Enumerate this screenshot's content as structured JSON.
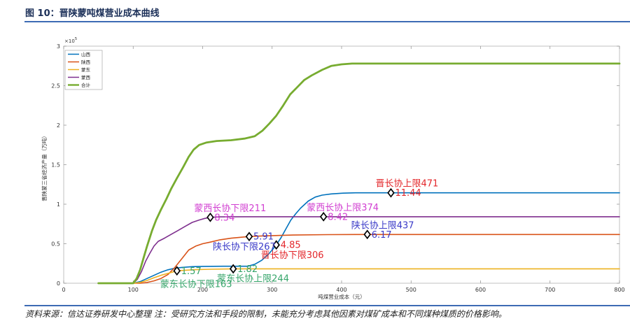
{
  "figure": {
    "title": "图 10：晋陕蒙吨煤营业成本曲线",
    "source_note": "资料来源：信达证券研发中心整理 注：受研究方法和手段的限制，未能充分考虑其他因素对煤矿成本和不同煤种煤质的价格影响。",
    "accent_color": "#3d6bb4"
  },
  "chart_data": {
    "type": "line",
    "xlabel": "吨煤营业成本（元）",
    "ylabel": "晋陕蒙三省经济产量（万吨）",
    "y_multiplier": {
      "base": "×10",
      "exponent": "5"
    },
    "xlim": [
      0,
      800
    ],
    "ylim": [
      0,
      3
    ],
    "x_ticks": [
      0,
      100,
      200,
      300,
      400,
      500,
      600,
      700,
      800
    ],
    "x_tick_labels": [
      "0",
      "100",
      "200",
      "300",
      "400",
      "500",
      "600",
      "700",
      "800"
    ],
    "y_ticks": [
      0,
      0.5,
      1,
      1.5,
      2,
      2.5,
      3
    ],
    "y_tick_labels": [
      "0",
      "0.5",
      "1",
      "1.5",
      "2",
      "2.5",
      "3"
    ],
    "grid": false,
    "legend_position": "top-left",
    "series": [
      {
        "name": "山西",
        "color": "#0072BD",
        "x": [
          50,
          100,
          110,
          120,
          130,
          140,
          150,
          160,
          170,
          185,
          200,
          230,
          265,
          275,
          285,
          295,
          300,
          306,
          313,
          320,
          327,
          334,
          341,
          352,
          362,
          372,
          385,
          402,
          420,
          800
        ],
        "y": [
          0,
          0,
          0.02,
          0.06,
          0.1,
          0.14,
          0.17,
          0.19,
          0.2,
          0.21,
          0.213,
          0.215,
          0.215,
          0.24,
          0.29,
          0.37,
          0.42,
          0.485,
          0.58,
          0.69,
          0.8,
          0.88,
          0.95,
          1.04,
          1.09,
          1.115,
          1.13,
          1.14,
          1.144,
          1.144
        ]
      },
      {
        "name": "陕西",
        "color": "#D95319",
        "x": [
          50,
          110,
          120,
          130,
          140,
          150,
          160,
          170,
          180,
          190,
          200,
          211,
          225,
          241,
          267,
          290,
          330,
          380,
          437,
          800
        ],
        "y": [
          0,
          0,
          0.01,
          0.03,
          0.06,
          0.11,
          0.2,
          0.31,
          0.42,
          0.47,
          0.5,
          0.52,
          0.55,
          0.57,
          0.591,
          0.6,
          0.61,
          0.615,
          0.617,
          0.617
        ]
      },
      {
        "name": "蒙东",
        "color": "#EDB120",
        "x": [
          50,
          100,
          110,
          120,
          130,
          140,
          150,
          163,
          175,
          190,
          210,
          244,
          800
        ],
        "y": [
          0,
          0,
          0.01,
          0.035,
          0.07,
          0.1,
          0.125,
          0.157,
          0.165,
          0.172,
          0.177,
          0.182,
          0.182
        ]
      },
      {
        "name": "蒙西",
        "color": "#7E2F8E",
        "x": [
          50,
          100,
          106,
          112,
          118,
          124,
          130,
          136,
          145,
          155,
          165,
          175,
          185,
          195,
          203,
          211,
          225,
          260,
          800
        ],
        "y": [
          0,
          0,
          0.05,
          0.15,
          0.28,
          0.38,
          0.47,
          0.53,
          0.57,
          0.62,
          0.67,
          0.72,
          0.77,
          0.8,
          0.82,
          0.834,
          0.84,
          0.842,
          0.842
        ]
      },
      {
        "name": "合计",
        "color": "#77AC30",
        "x": [
          50,
          100,
          105,
          110,
          115,
          120,
          127,
          133,
          140,
          148,
          155,
          163,
          172,
          180,
          187,
          195,
          205,
          220,
          241,
          260,
          275,
          286,
          296,
          306,
          316,
          326,
          336,
          346,
          357,
          372,
          385,
          400,
          415,
          800
        ],
        "y": [
          0,
          0,
          0.06,
          0.17,
          0.32,
          0.47,
          0.66,
          0.8,
          0.93,
          1.07,
          1.2,
          1.33,
          1.47,
          1.6,
          1.69,
          1.75,
          1.78,
          1.8,
          1.81,
          1.83,
          1.86,
          1.93,
          2.02,
          2.12,
          2.25,
          2.39,
          2.48,
          2.57,
          2.63,
          2.7,
          2.75,
          2.77,
          2.78,
          2.78
        ]
      }
    ],
    "annotations": [
      {
        "label": "晋长协上限471",
        "value_label": "11.44",
        "x": 471,
        "y": 1.144,
        "color": "#e3262a"
      },
      {
        "label": "晋长协下限306",
        "value_label": "4.85",
        "x": 306,
        "y": 0.485,
        "color": "#e3262a"
      },
      {
        "label": "陕长协上限437",
        "value_label": "6.17",
        "x": 437,
        "y": 0.617,
        "color": "#3b3bc8"
      },
      {
        "label": "陕长协下限267",
        "value_label": "5.91",
        "x": 267,
        "y": 0.591,
        "color": "#3b3bc8"
      },
      {
        "label": "蒙西长协上限374",
        "value_label": "8.42",
        "x": 374,
        "y": 0.842,
        "color": "#d13fd1"
      },
      {
        "label": "蒙西长协下限211",
        "value_label": "8.34",
        "x": 211,
        "y": 0.834,
        "color": "#d13fd1"
      },
      {
        "label": "蒙东长协上限244",
        "value_label": "1.82",
        "x": 244,
        "y": 0.182,
        "color": "#36a56a"
      },
      {
        "label": "蒙东长协下限163",
        "value_label": "1.57",
        "x": 163,
        "y": 0.157,
        "color": "#36a56a"
      }
    ]
  }
}
